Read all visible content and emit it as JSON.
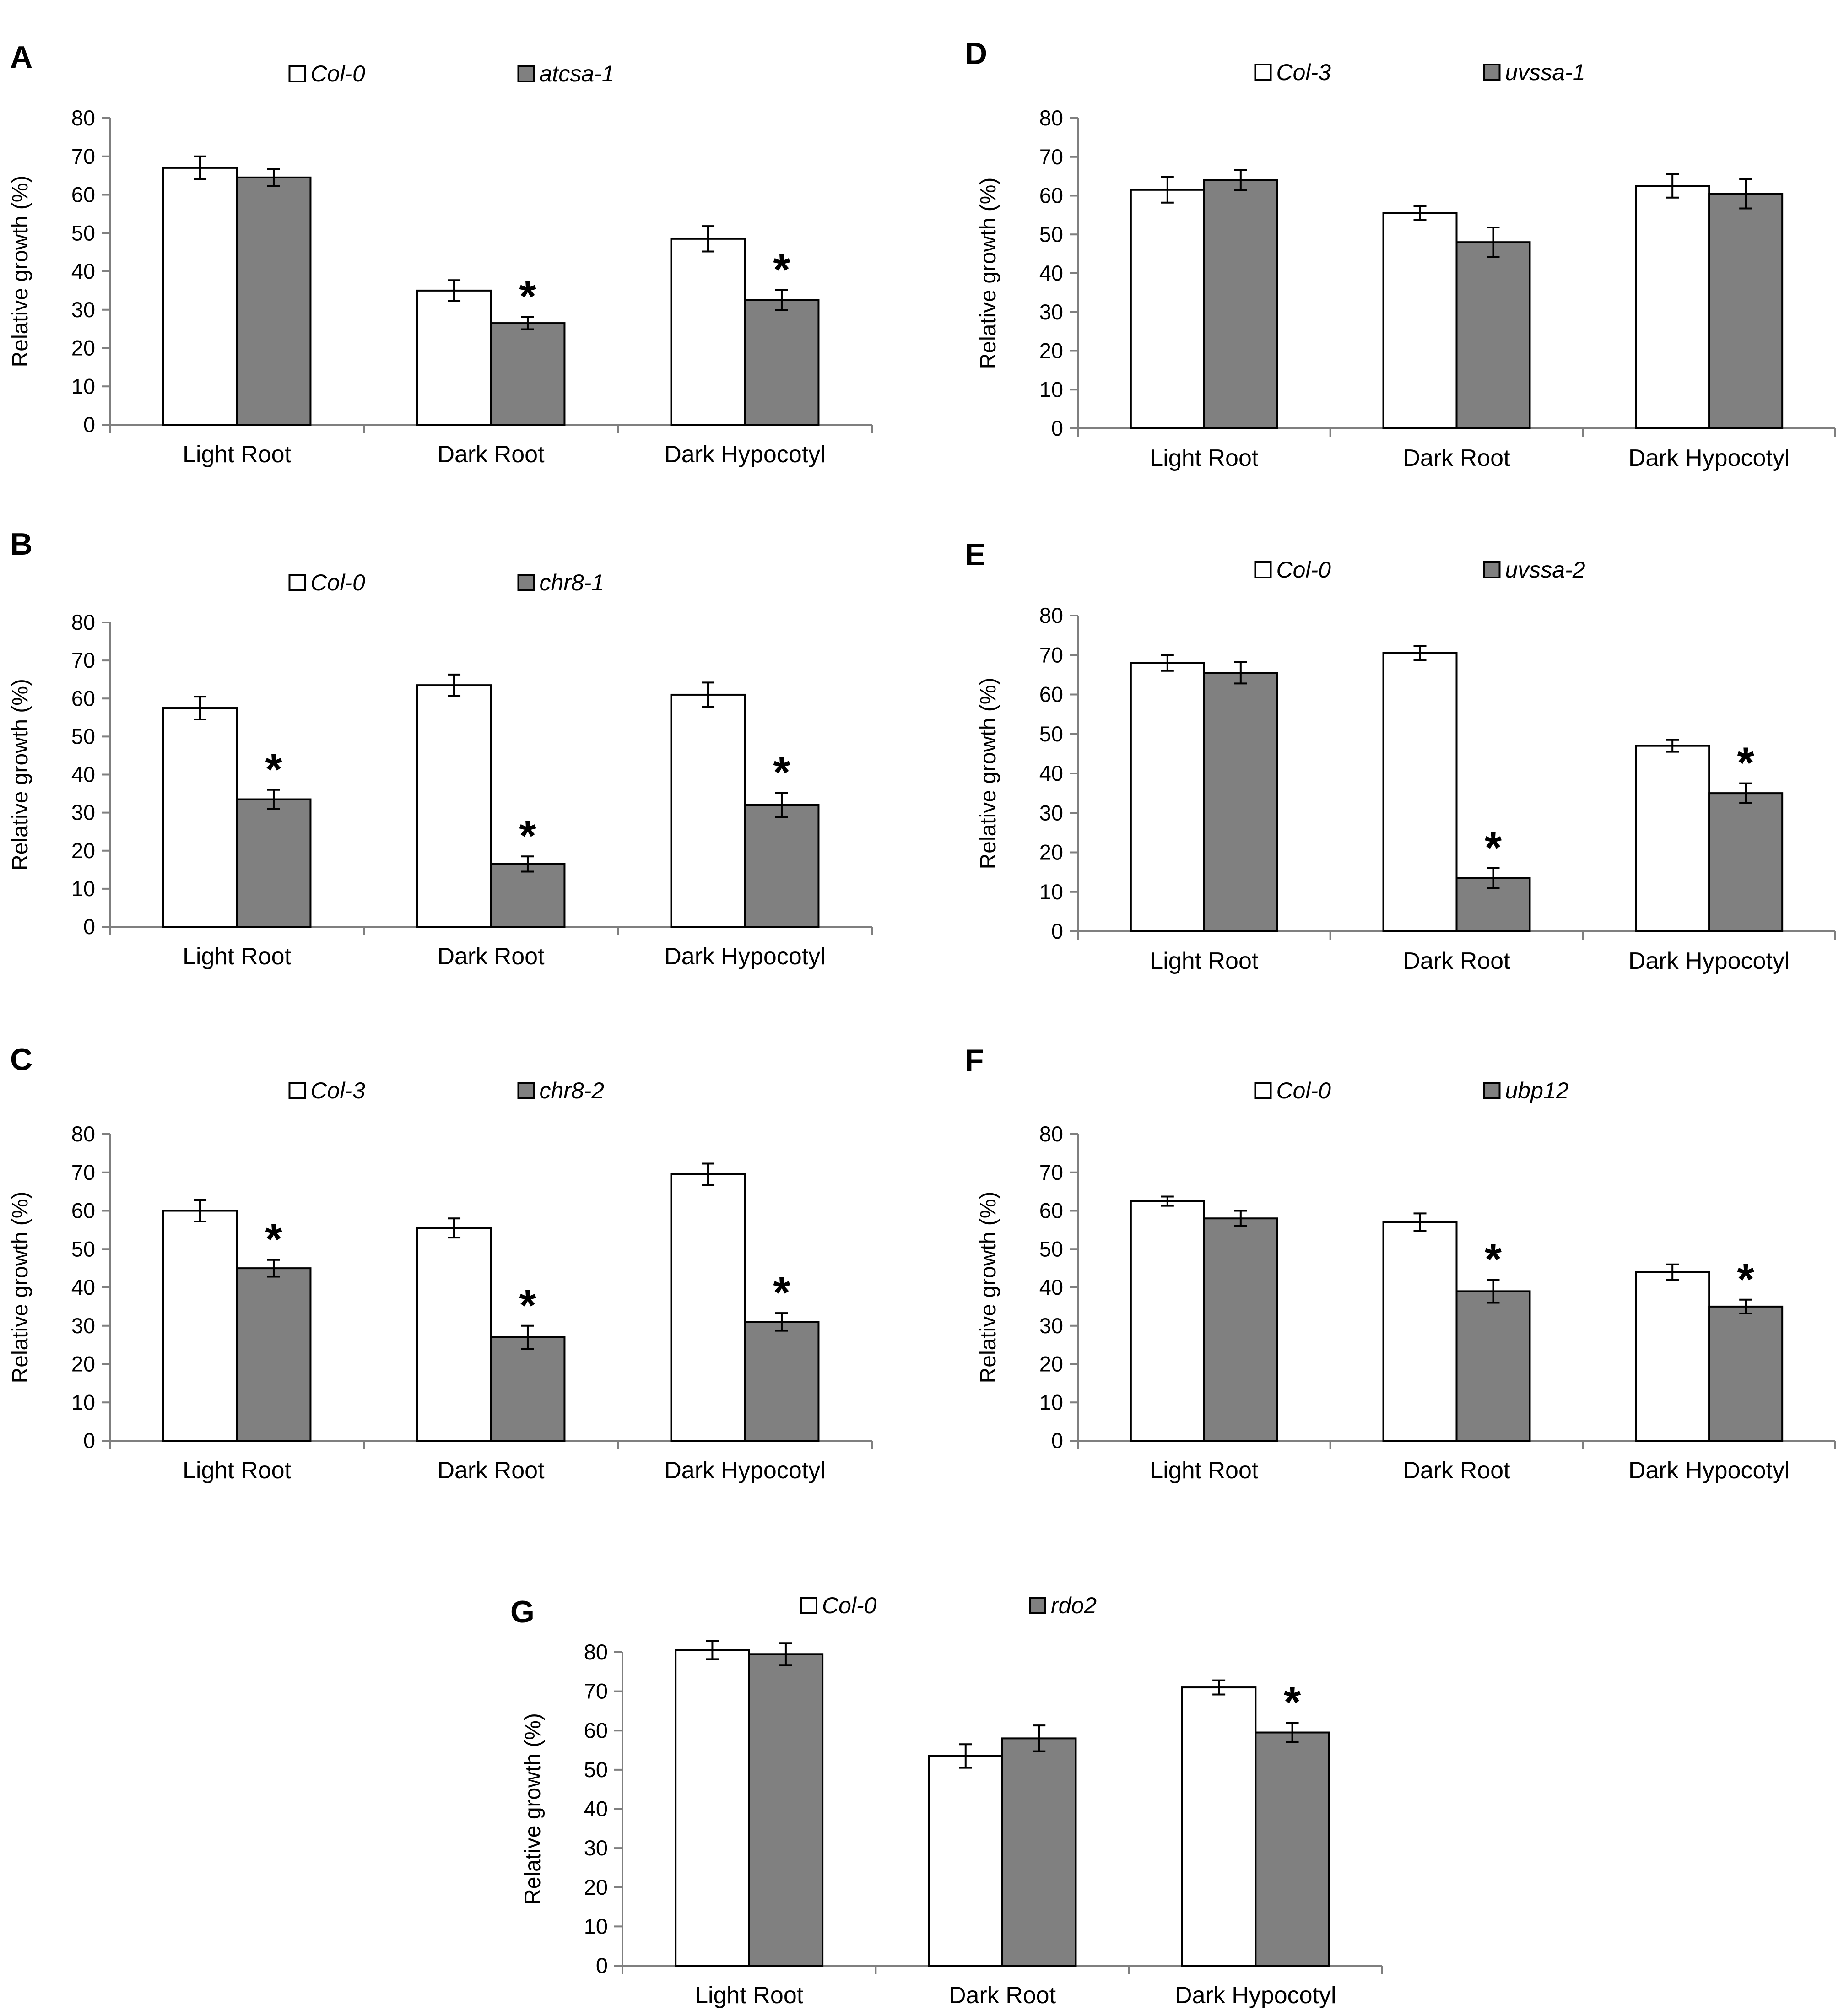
{
  "figure": {
    "description_colors": {
      "control": "#ffffff",
      "mutant": "#808080",
      "stroke": "#000000"
    }
  },
  "chart_data": [
    {
      "id": "A",
      "type": "bar",
      "panel_label": "A",
      "categories": [
        "Light Root",
        "Dark Root",
        "Dark Hypocotyl"
      ],
      "ylabel": "Relative growth (%)",
      "ylim": [
        0,
        80
      ],
      "yticks": [
        0,
        10,
        20,
        30,
        40,
        50,
        60,
        70,
        80
      ],
      "legend": "top-center",
      "grid": false,
      "series": [
        {
          "name": "Col-0",
          "color": "#ffffff",
          "values": [
            67,
            35,
            48.5
          ],
          "errors": [
            3,
            2.7,
            3.3
          ],
          "significant": [
            false,
            false,
            false
          ]
        },
        {
          "name": "atcsa-1",
          "color": "#808080",
          "values": [
            64.5,
            26.5,
            32.5
          ],
          "errors": [
            2.2,
            1.6,
            2.6
          ],
          "significant": [
            false,
            true,
            true
          ]
        }
      ],
      "annotation_symbol": "*"
    },
    {
      "id": "B",
      "type": "bar",
      "panel_label": "B",
      "categories": [
        "Light Root",
        "Dark Root",
        "Dark Hypocotyl"
      ],
      "ylabel": "Relative growth (%)",
      "ylim": [
        0,
        80
      ],
      "yticks": [
        0,
        10,
        20,
        30,
        40,
        50,
        60,
        70,
        80
      ],
      "legend": "top-center",
      "grid": false,
      "series": [
        {
          "name": "Col-0",
          "color": "#ffffff",
          "values": [
            57.5,
            63.5,
            61
          ],
          "errors": [
            3,
            2.8,
            3.2
          ],
          "significant": [
            false,
            false,
            false
          ]
        },
        {
          "name": "chr8-1",
          "color": "#808080",
          "values": [
            33.5,
            16.5,
            32
          ],
          "errors": [
            2.5,
            2,
            3.2
          ],
          "significant": [
            true,
            true,
            true
          ]
        }
      ],
      "annotation_symbol": "*"
    },
    {
      "id": "C",
      "type": "bar",
      "panel_label": "C",
      "categories": [
        "Light Root",
        "Dark Root",
        "Dark Hypocotyl"
      ],
      "ylabel": "Relative growth (%)",
      "ylim": [
        0,
        80
      ],
      "yticks": [
        0,
        10,
        20,
        30,
        40,
        50,
        60,
        70,
        80
      ],
      "legend": "top-center",
      "grid": false,
      "series": [
        {
          "name": "Col-3",
          "color": "#ffffff",
          "values": [
            60,
            55.5,
            69.5
          ],
          "errors": [
            2.8,
            2.5,
            2.8
          ],
          "significant": [
            false,
            false,
            false
          ]
        },
        {
          "name": "chr8-2",
          "color": "#808080",
          "values": [
            45,
            27,
            31
          ],
          "errors": [
            2.2,
            3,
            2.3
          ],
          "significant": [
            true,
            true,
            true
          ]
        }
      ],
      "annotation_symbol": "*"
    },
    {
      "id": "D",
      "type": "bar",
      "panel_label": "D",
      "categories": [
        "Light Root",
        "Dark Root",
        "Dark Hypocotyl"
      ],
      "ylabel": "Relative growth (%)",
      "ylim": [
        0,
        80
      ],
      "yticks": [
        0,
        10,
        20,
        30,
        40,
        50,
        60,
        70,
        80
      ],
      "legend": "top-center",
      "grid": false,
      "series": [
        {
          "name": "Col-3",
          "color": "#ffffff",
          "values": [
            61.5,
            55.5,
            62.5
          ],
          "errors": [
            3.3,
            1.8,
            3
          ],
          "significant": [
            false,
            false,
            false
          ]
        },
        {
          "name": "uvssa-1",
          "color": "#808080",
          "values": [
            64,
            48,
            60.5
          ],
          "errors": [
            2.6,
            3.8,
            3.8
          ],
          "significant": [
            false,
            false,
            false
          ]
        }
      ],
      "annotation_symbol": "*"
    },
    {
      "id": "E",
      "type": "bar",
      "panel_label": "E",
      "categories": [
        "Light Root",
        "Dark Root",
        "Dark Hypocotyl"
      ],
      "ylabel": "Relative growth (%)",
      "ylim": [
        0,
        80
      ],
      "yticks": [
        0,
        10,
        20,
        30,
        40,
        50,
        60,
        70,
        80
      ],
      "legend": "top-center",
      "grid": false,
      "series": [
        {
          "name": "Col-0",
          "color": "#ffffff",
          "values": [
            68,
            70.5,
            47
          ],
          "errors": [
            2,
            1.8,
            1.5
          ],
          "significant": [
            false,
            false,
            false
          ]
        },
        {
          "name": "uvssa-2",
          "color": "#808080",
          "values": [
            65.5,
            13.5,
            35
          ],
          "errors": [
            2.7,
            2.5,
            2.5
          ],
          "significant": [
            false,
            true,
            true
          ]
        }
      ],
      "annotation_symbol": "*"
    },
    {
      "id": "F",
      "type": "bar",
      "panel_label": "F",
      "categories": [
        "Light Root",
        "Dark Root",
        "Dark Hypocotyl"
      ],
      "ylabel": "Relative growth (%)",
      "ylim": [
        0,
        80
      ],
      "yticks": [
        0,
        10,
        20,
        30,
        40,
        50,
        60,
        70,
        80
      ],
      "legend": "top-center",
      "grid": false,
      "series": [
        {
          "name": "Col-0",
          "color": "#ffffff",
          "values": [
            62.5,
            57,
            44
          ],
          "errors": [
            1.2,
            2.3,
            2
          ],
          "significant": [
            false,
            false,
            false
          ]
        },
        {
          "name": "ubp12",
          "color": "#808080",
          "values": [
            58,
            39,
            35
          ],
          "errors": [
            2,
            3,
            1.8
          ],
          "significant": [
            false,
            true,
            true
          ]
        }
      ],
      "annotation_symbol": "*"
    },
    {
      "id": "G",
      "type": "bar",
      "panel_label": "G",
      "categories": [
        "Light Root",
        "Dark Root",
        "Dark Hypocotyl"
      ],
      "ylabel": "Relative growth (%)",
      "ylim": [
        0,
        80
      ],
      "yticks": [
        0,
        10,
        20,
        30,
        40,
        50,
        60,
        70,
        80
      ],
      "legend": "top-center",
      "grid": false,
      "series": [
        {
          "name": "Col-0",
          "color": "#ffffff",
          "values": [
            80.5,
            53.5,
            71
          ],
          "errors": [
            2.3,
            3,
            1.8
          ],
          "significant": [
            false,
            false,
            false
          ]
        },
        {
          "name": "rdo2",
          "color": "#808080",
          "values": [
            79.5,
            58,
            59.5
          ],
          "errors": [
            2.8,
            3.3,
            2.5
          ],
          "significant": [
            false,
            false,
            true
          ]
        }
      ],
      "annotation_symbol": "*"
    }
  ]
}
